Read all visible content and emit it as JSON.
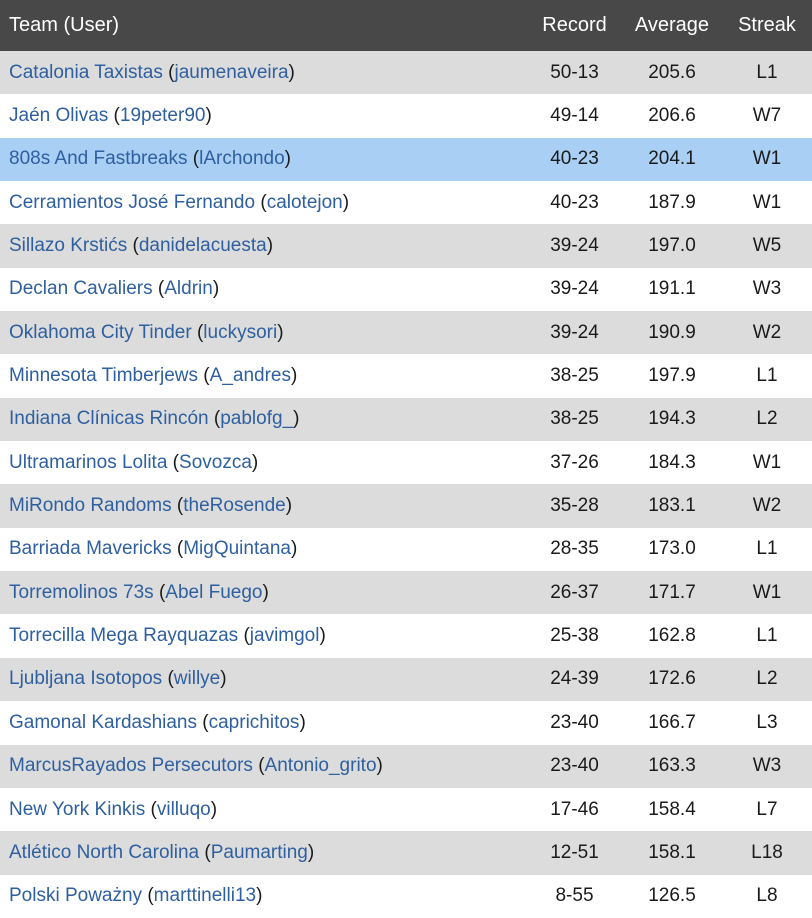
{
  "headers": {
    "team": "Team (User)",
    "record": "Record",
    "average": "Average",
    "streak": "Streak"
  },
  "rows": [
    {
      "team": "Catalonia Taxistas",
      "user": "jaumenaveira",
      "record": "50-13",
      "average": "205.6",
      "streak": "L1"
    },
    {
      "team": "Jaén Olivas",
      "user": "19peter90",
      "record": "49-14",
      "average": "206.6",
      "streak": "W7"
    },
    {
      "team": "808s And Fastbreaks",
      "user": "lArchondo",
      "record": "40-23",
      "average": "204.1",
      "streak": "W1",
      "highlighted": true
    },
    {
      "team": "Cerramientos José Fernando",
      "user": "calotejon",
      "record": "40-23",
      "average": "187.9",
      "streak": "W1"
    },
    {
      "team": "Sillazo Krstićs",
      "user": "danidelacuesta",
      "record": "39-24",
      "average": "197.0",
      "streak": "W5"
    },
    {
      "team": "Declan Cavaliers",
      "user": "Aldrin",
      "record": "39-24",
      "average": "191.1",
      "streak": "W3"
    },
    {
      "team": "Oklahoma City Tinder",
      "user": "luckysori",
      "record": "39-24",
      "average": "190.9",
      "streak": "W2"
    },
    {
      "team": "Minnesota Timberjews",
      "user": "A_andres",
      "record": "38-25",
      "average": "197.9",
      "streak": "L1"
    },
    {
      "team": "Indiana Clínicas Rincón",
      "user": "pablofg_",
      "record": "38-25",
      "average": "194.3",
      "streak": "L2"
    },
    {
      "team": "Ultramarinos Lolita",
      "user": "Sovozca",
      "record": "37-26",
      "average": "184.3",
      "streak": "W1"
    },
    {
      "team": "MiRondo Randoms",
      "user": "theRosende",
      "record": "35-28",
      "average": "183.1",
      "streak": "W2"
    },
    {
      "team": "Barriada Mavericks",
      "user": "MigQuintana",
      "record": "28-35",
      "average": "173.0",
      "streak": "L1"
    },
    {
      "team": "Torremolinos 73s",
      "user": "Abel Fuego",
      "record": "26-37",
      "average": "171.7",
      "streak": "W1"
    },
    {
      "team": "Torrecilla Mega Rayquazas",
      "user": "javimgol",
      "record": "25-38",
      "average": "162.8",
      "streak": "L1"
    },
    {
      "team": "Ljubljana Isotopos",
      "user": "willye",
      "record": "24-39",
      "average": "172.6",
      "streak": "L2"
    },
    {
      "team": "Gamonal Kardashians",
      "user": "caprichitos",
      "record": "23-40",
      "average": "166.7",
      "streak": "L3"
    },
    {
      "team": "MarcusRayados Persecutors",
      "user": "Antonio_grito",
      "record": "23-40",
      "average": "163.3",
      "streak": "W3"
    },
    {
      "team": "New York Kinkis",
      "user": "villuqo",
      "record": "17-46",
      "average": "158.4",
      "streak": "L7"
    },
    {
      "team": "Atlético North Carolina",
      "user": "Paumarting",
      "record": "12-51",
      "average": "158.1",
      "streak": "L18"
    },
    {
      "team": "Polski Poważny",
      "user": "marttinelli13",
      "record": "8-55",
      "average": "126.5",
      "streak": "L8"
    }
  ],
  "colors": {
    "header_bg": "#484848",
    "header_text": "#ffffff",
    "row_alt_bg": "#dcdcdc",
    "row_bg": "#ffffff",
    "highlight_bg": "#a9cff5",
    "link": "#2e5fa0"
  }
}
